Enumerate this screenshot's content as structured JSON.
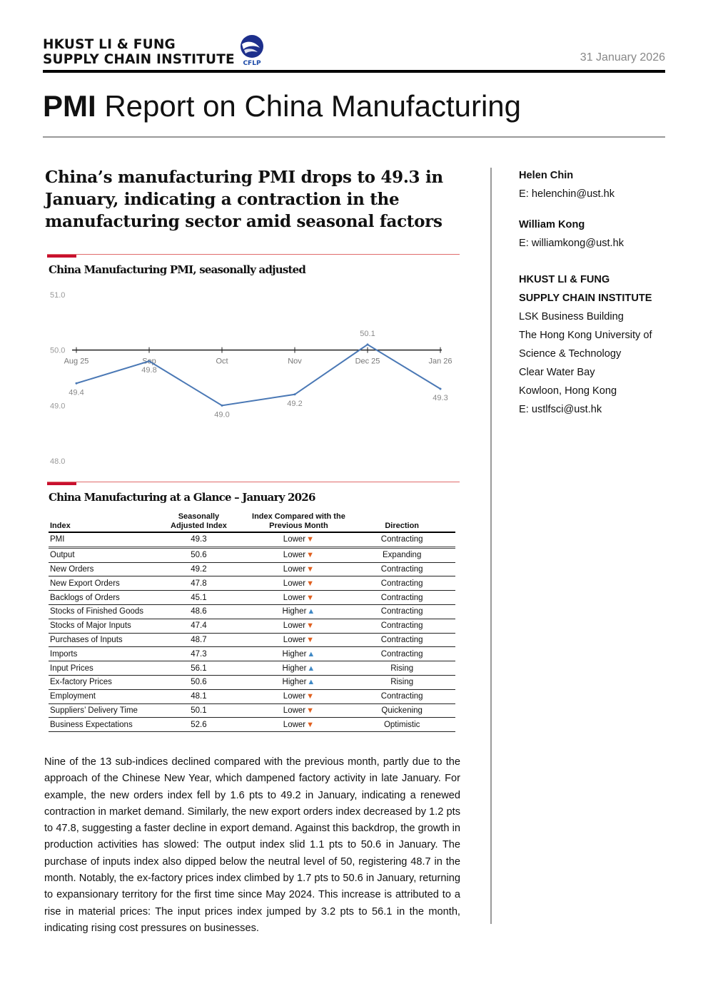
{
  "header": {
    "org_line1": "HKUST LI & FUNG",
    "org_line2": "SUPPLY CHAIN INSTITUTE",
    "logo_text": "CFLP",
    "date": "31 January 2026"
  },
  "report_title": {
    "bold": "PMI",
    "rest": " Report on China Manufacturing"
  },
  "headline": "China’s manufacturing PMI drops to 49.3 in January, indicating a contraction in the manufacturing sector amid seasonal factors",
  "chart": {
    "title": "China Manufacturing PMI, seasonally adjusted"
  },
  "chart_data": {
    "type": "line",
    "x": [
      "Aug 25",
      "Sep",
      "Oct",
      "Nov",
      "Dec 25",
      "Jan 26"
    ],
    "series": [
      {
        "values": [
          49.4,
          49.8,
          49.0,
          49.2,
          50.1,
          49.3
        ]
      }
    ],
    "data_labels": [
      "49.4",
      "49.8",
      "49.0",
      "49.2",
      "50.1",
      "49.3"
    ],
    "y_ticks": [
      "51.0",
      "50.0",
      "49.0",
      "48.0"
    ],
    "ylim": [
      48.0,
      51.0
    ],
    "axis_crossing": 50.0,
    "grid": false,
    "line_color": "#4a78b5"
  },
  "table": {
    "title": "China Manufacturing at a Glance – January 2026",
    "headers": {
      "index": "Index",
      "sa_line1": "Seasonally",
      "sa_line2": "Adjusted Index",
      "cmp_line1": "Index Compared with the",
      "cmp_line2": "Previous Month",
      "direction": "Direction"
    },
    "rows": [
      {
        "name": "PMI",
        "value": "49.3",
        "compare": "Lower",
        "arrow": "▼",
        "direction": "Contracting"
      },
      {
        "name": "Output",
        "value": "50.6",
        "compare": "Lower",
        "arrow": "▼",
        "direction": "Expanding"
      },
      {
        "name": "New Orders",
        "value": "49.2",
        "compare": "Lower",
        "arrow": "▼",
        "direction": "Contracting"
      },
      {
        "name": "New Export Orders",
        "value": "47.8",
        "compare": "Lower",
        "arrow": "▼",
        "direction": "Contracting"
      },
      {
        "name": "Backlogs of Orders",
        "value": "45.1",
        "compare": "Lower",
        "arrow": "▼",
        "direction": "Contracting"
      },
      {
        "name": "Stocks of Finished Goods",
        "value": "48.6",
        "compare": "Higher",
        "arrow": "▲",
        "direction": "Contracting"
      },
      {
        "name": "Stocks of Major Inputs",
        "value": "47.4",
        "compare": "Lower",
        "arrow": "▼",
        "direction": "Contracting"
      },
      {
        "name": "Purchases of Inputs",
        "value": "48.7",
        "compare": "Lower",
        "arrow": "▼",
        "direction": "Contracting"
      },
      {
        "name": "Imports",
        "value": "47.3",
        "compare": "Higher",
        "arrow": "▲",
        "direction": "Contracting"
      },
      {
        "name": "Input Prices",
        "value": "56.1",
        "compare": "Higher",
        "arrow": "▲",
        "direction": "Rising"
      },
      {
        "name": "Ex-factory Prices",
        "value": "50.6",
        "compare": "Higher",
        "arrow": "▲",
        "direction": "Rising"
      },
      {
        "name": "Employment",
        "value": "48.1",
        "compare": "Lower",
        "arrow": "▼",
        "direction": "Contracting"
      },
      {
        "name": "Suppliers’ Delivery Time",
        "value": "50.1",
        "compare": "Lower",
        "arrow": "▼",
        "direction": "Quickening"
      },
      {
        "name": "Business Expectations",
        "value": "52.6",
        "compare": "Lower",
        "arrow": "▼",
        "direction": "Optimistic"
      }
    ],
    "colors": {
      "down": "#e0601f",
      "up": "#3f88c5"
    }
  },
  "body_text": "Nine of the 13 sub-indices declined compared with the previous month, partly due to the approach of the Chinese New Year, which dampened factory activity in late January. For example, the new orders index fell by 1.6 pts to 49.2 in January, indicating a renewed contraction in market demand. Similarly, the new export orders index decreased by 1.2 pts to 47.8, suggesting a faster decline in export demand. Against this backdrop, the growth in production activities has slowed: The output index slid 1.1 pts to 50.6 in January. The purchase of inputs index also dipped below the neutral level of 50, registering 48.7 in the month. Notably, the ex-factory prices index climbed by 1.7 pts to 50.6 in January, returning to expansionary territory for the first time since May 2024. This increase is attributed to a rise in material prices: The input prices index jumped by 3.2 pts to 56.1 in the month, indicating rising cost pressures on businesses.",
  "contacts": {
    "author1_name": "Helen Chin",
    "author1_email": "E: helenchin@ust.hk",
    "author2_name": "William Kong",
    "author2_email": "E: williamkong@ust.hk",
    "inst_line1": "HKUST LI & FUNG",
    "inst_line2": "SUPPLY CHAIN INSTITUTE",
    "addr1": "LSK Business Building",
    "addr2": "The Hong Kong University of",
    "addr3": "Science & Technology",
    "addr4": "Clear Water Bay",
    "addr5": "Kowloon, Hong Kong",
    "inst_email": "E: ustlfsci@ust.hk"
  }
}
